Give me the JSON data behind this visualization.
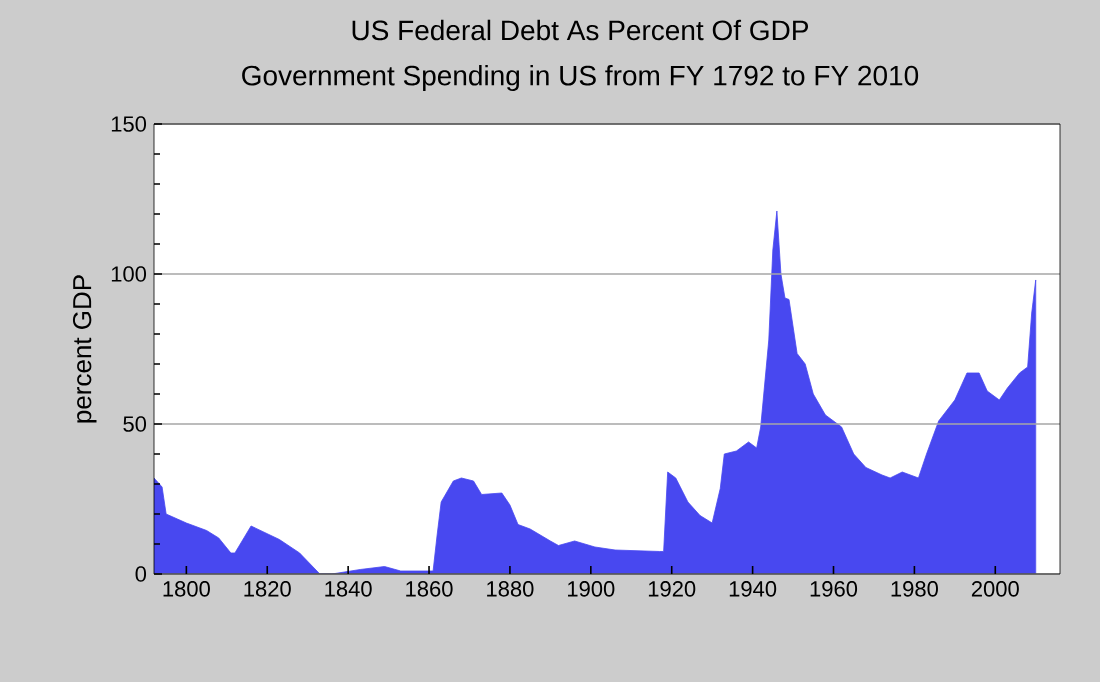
{
  "chart_data": {
    "type": "area",
    "title": "US Federal Debt As Percent Of GDP",
    "subtitle": "Government Spending in US from FY 1792 to FY 2010",
    "ylabel": "percent GDP",
    "x": [
      1792,
      1794,
      1795,
      1800,
      1805,
      1808,
      1811,
      1812,
      1816,
      1823,
      1828,
      1833,
      1836,
      1843,
      1849,
      1853,
      1861,
      1862,
      1863,
      1866,
      1868,
      1871,
      1873,
      1878,
      1880,
      1882,
      1885,
      1890,
      1892,
      1896,
      1901,
      1906,
      1917,
      1918,
      1919,
      1921,
      1924,
      1927,
      1930,
      1932,
      1933,
      1936,
      1939,
      1941,
      1942,
      1944,
      1945,
      1946,
      1947,
      1948,
      1949,
      1951,
      1953,
      1955,
      1958,
      1962,
      1965,
      1968,
      1972,
      1974,
      1977,
      1981,
      1983,
      1986,
      1990,
      1993,
      1996,
      1998,
      2001,
      2003,
      2006,
      2008,
      2009,
      2010
    ],
    "series": [
      {
        "color": "#4848f0",
        "values": [
          32,
          29,
          20,
          17,
          14.5,
          12,
          7,
          7,
          16,
          11.5,
          7,
          0,
          0,
          1.5,
          2.5,
          1,
          1,
          13,
          24,
          31,
          32,
          31,
          26.5,
          27,
          23,
          16.5,
          15,
          11,
          9.5,
          11,
          9,
          8,
          7.5,
          7.5,
          34,
          32,
          24,
          19.5,
          17,
          28.5,
          40,
          41,
          44,
          42,
          49,
          78,
          108,
          121,
          100,
          92,
          91.5,
          73.5,
          70,
          60,
          53,
          49,
          40,
          35.5,
          33,
          32,
          34,
          32,
          40,
          51,
          58,
          67,
          67,
          61,
          58,
          62,
          67,
          69,
          87,
          98
        ]
      }
    ],
    "xlim": [
      1792,
      2016
    ],
    "xticks": [
      1800,
      1820,
      1840,
      1860,
      1880,
      1900,
      1920,
      1940,
      1960,
      1980,
      2000
    ],
    "ylim": [
      0,
      150
    ],
    "yticks": [
      0,
      {
        "value": 10,
        "label": null
      },
      {
        "value": 20,
        "label": null
      },
      {
        "value": 30,
        "label": null
      },
      {
        "value": 40,
        "label": null
      },
      50,
      {
        "value": 60,
        "label": null
      },
      {
        "value": 70,
        "label": null
      },
      {
        "value": 80,
        "label": null
      },
      {
        "value": 90,
        "label": null
      },
      100,
      {
        "value": 110,
        "label": null
      },
      {
        "value": 120,
        "label": null
      },
      {
        "value": 130,
        "label": null
      },
      {
        "value": 140,
        "label": null
      },
      150
    ],
    "grid": "y"
  }
}
